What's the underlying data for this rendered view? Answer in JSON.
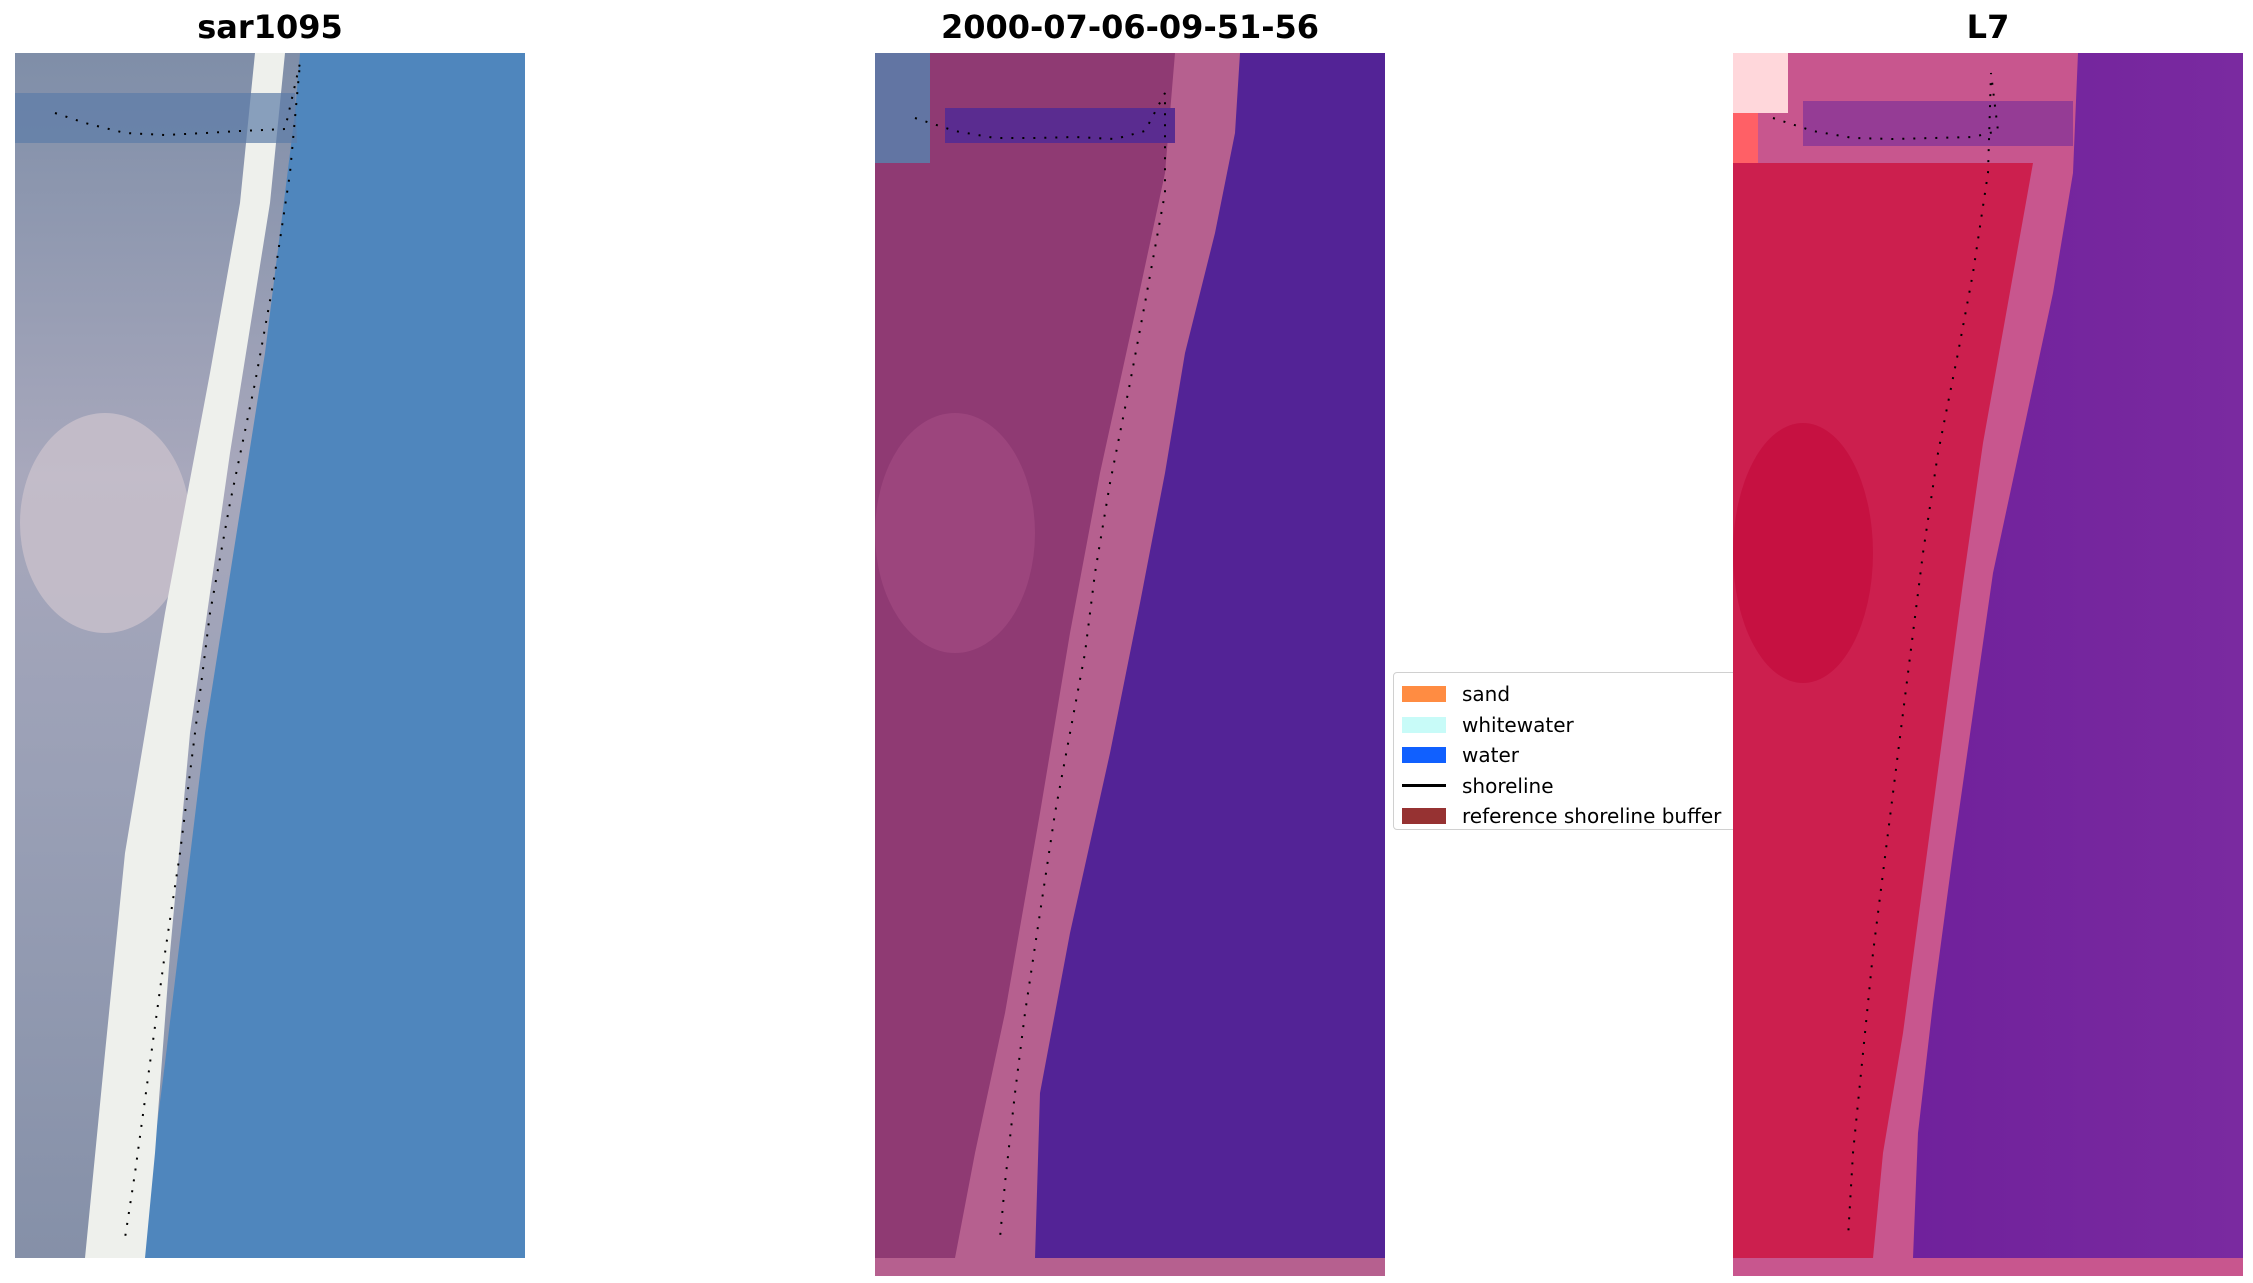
{
  "panels": [
    {
      "title": "sar1095"
    },
    {
      "title": "2000-07-06-09-51-56"
    },
    {
      "title": "L7"
    }
  ],
  "legend": {
    "items": [
      {
        "label": "sand",
        "kind": "patch",
        "color": "#ff8c42"
      },
      {
        "label": "whitewater",
        "kind": "patch",
        "color": "#c8fbf8"
      },
      {
        "label": "water",
        "kind": "patch",
        "color": "#1060ff"
      },
      {
        "label": "shoreline",
        "kind": "line",
        "color": "#000000"
      },
      {
        "label": "reference shoreline buffer",
        "kind": "patch",
        "color": "#963232"
      }
    ]
  },
  "colors": {
    "rgb_land": "#8e97ad",
    "rgb_beach": "#f2f3f0",
    "rgb_water": "#4f86bd",
    "class_land": "#8f3a73",
    "class_beach": "#b6608f",
    "class_water": "#532396",
    "ndwi_land": "#cc1f4e",
    "ndwi_beach": "#c8568e",
    "ndwi_water": "#6a1c99"
  }
}
